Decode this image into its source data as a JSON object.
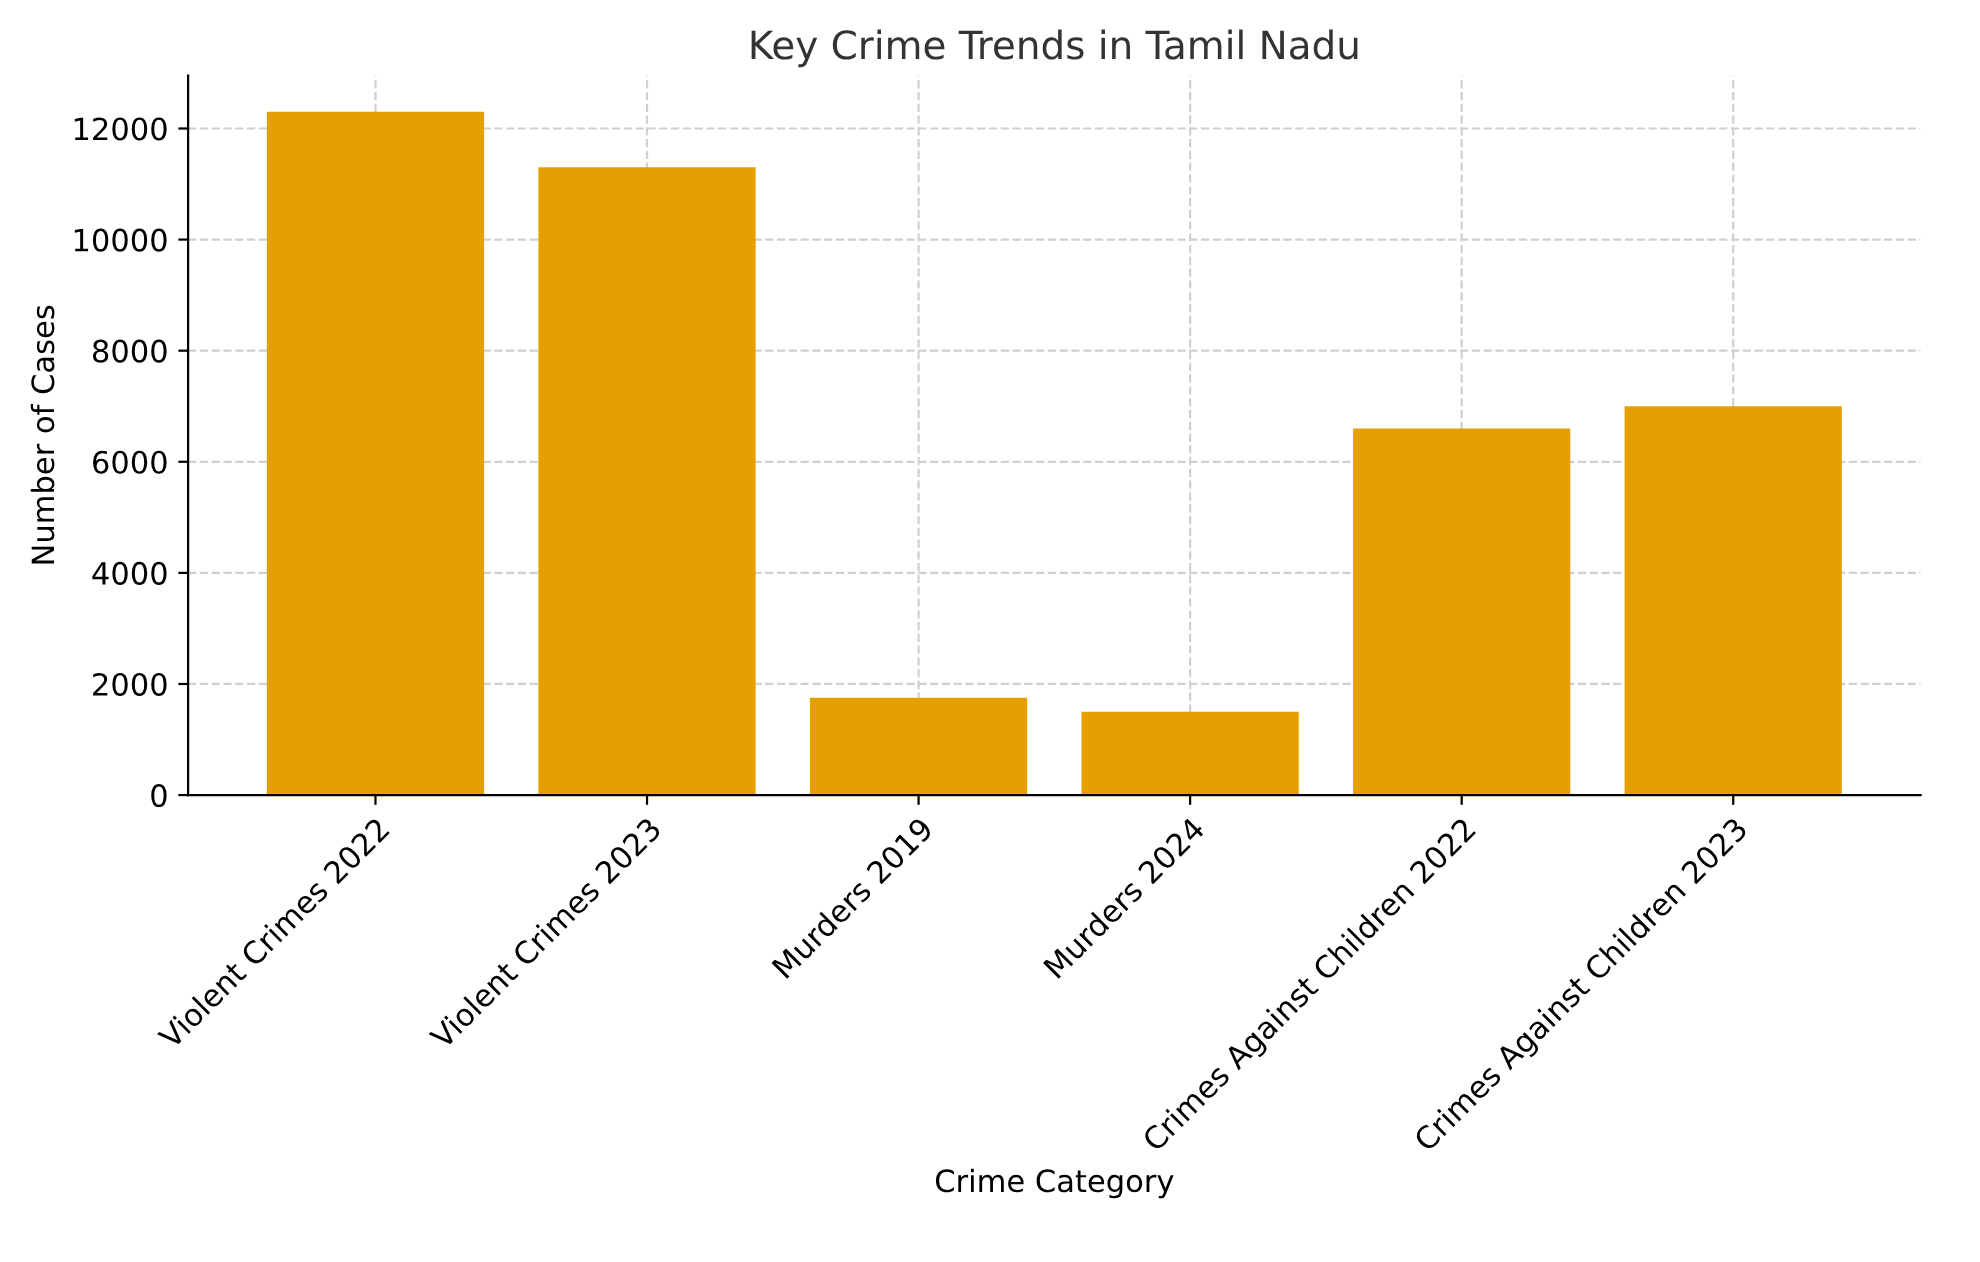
{
  "chart_data": {
    "type": "bar",
    "title": "Key Crime Trends in Tamil Nadu",
    "xlabel": "Crime Category",
    "ylabel": "Number of Cases",
    "categories": [
      "Violent Crimes 2022",
      "Violent Crimes 2023",
      "Murders 2019",
      "Murders 2024",
      "Crimes Against Children 2022",
      "Crimes Against Children 2023"
    ],
    "values": [
      12300,
      11300,
      1750,
      1500,
      6600,
      7000
    ],
    "color": "#e69f00",
    "ylim": [
      0,
      12950
    ],
    "yticks": [
      0,
      2000,
      4000,
      6000,
      8000,
      10000,
      12000
    ],
    "grid": true
  }
}
